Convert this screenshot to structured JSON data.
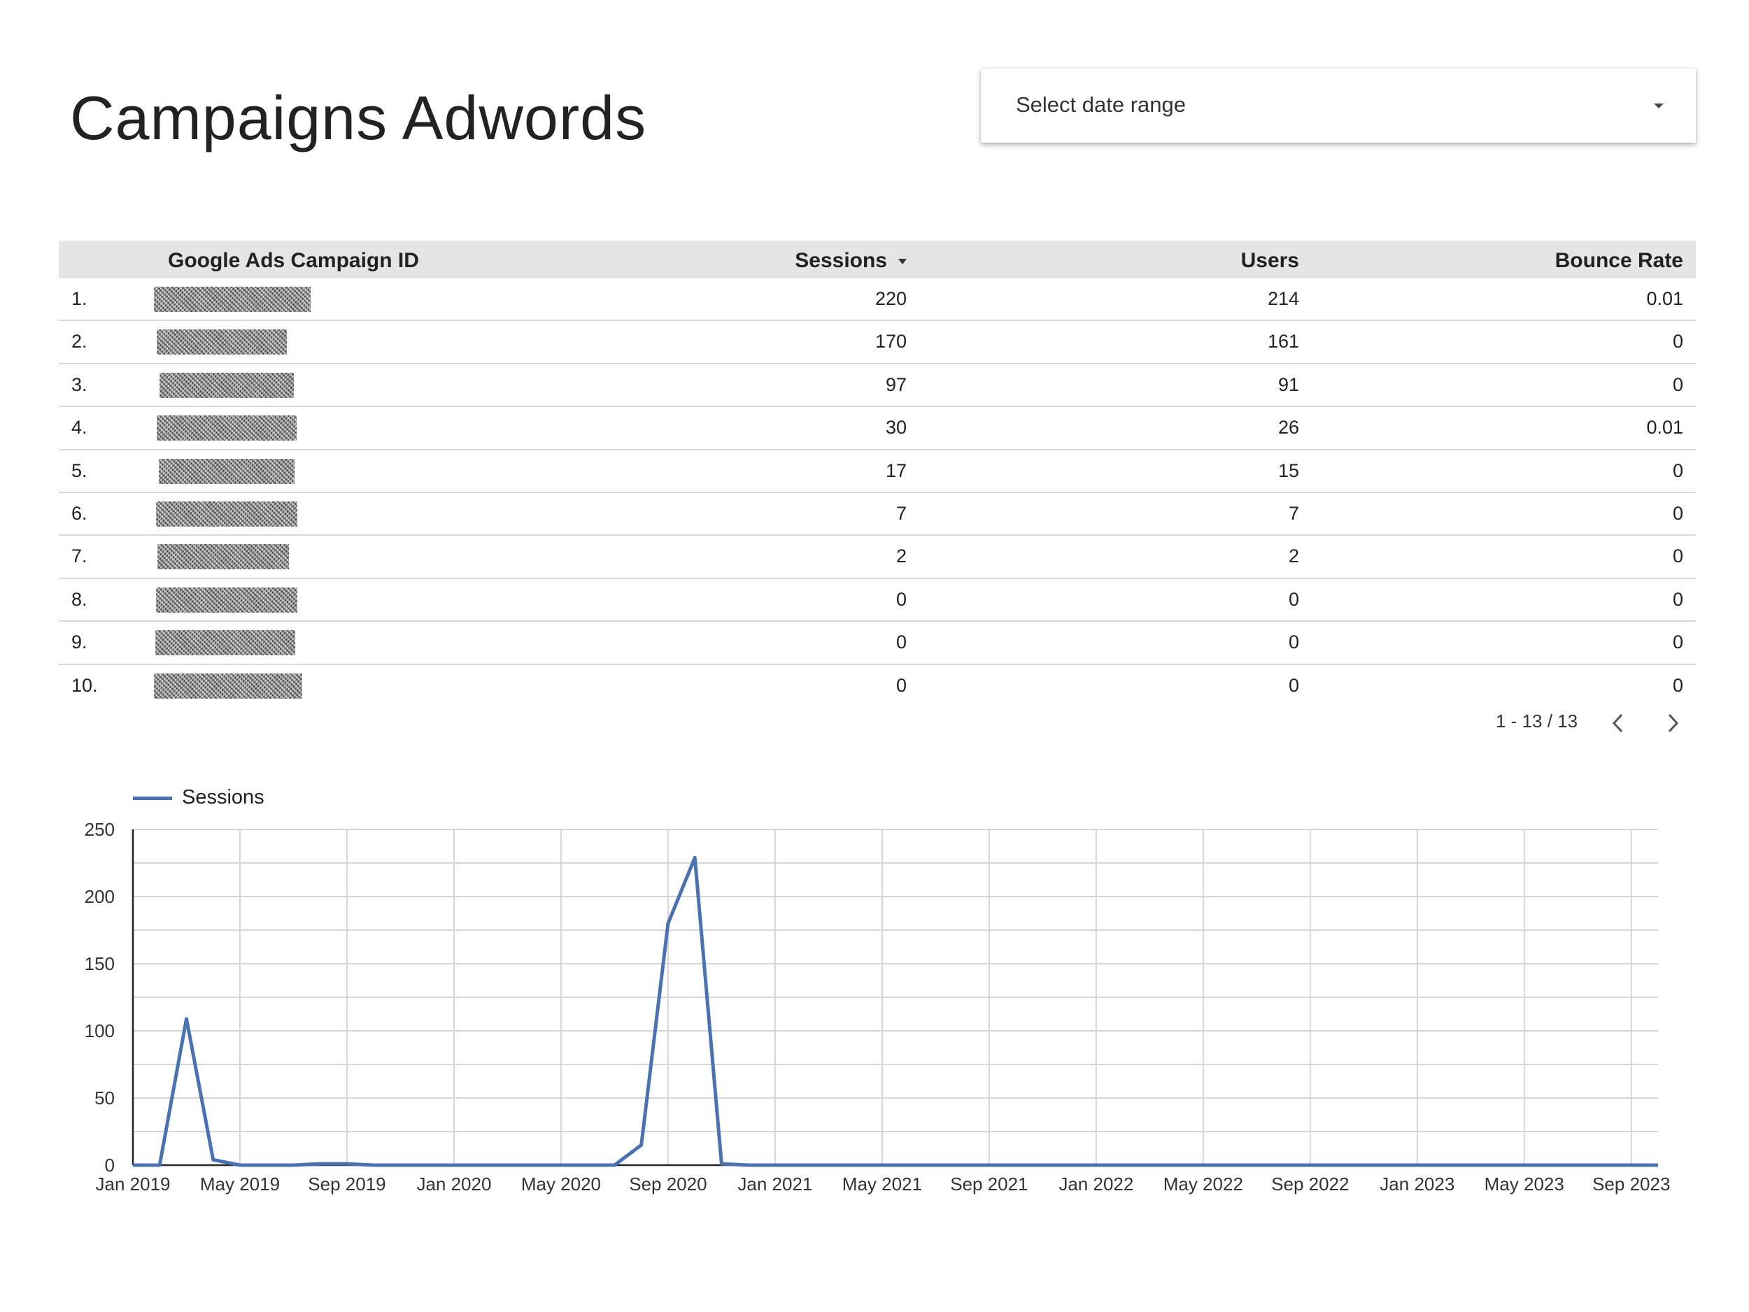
{
  "header": {
    "title": "Campaigns Adwords",
    "date_range_label": "Select date range"
  },
  "table": {
    "columns": [
      "Google Ads Campaign ID",
      "Sessions",
      "Users",
      "Bounce Rate"
    ],
    "sorted_column": "Sessions",
    "rows": [
      {
        "index": "1.",
        "sessions": "220",
        "users": "214",
        "bounce_rate": "0.01"
      },
      {
        "index": "2.",
        "sessions": "170",
        "users": "161",
        "bounce_rate": "0"
      },
      {
        "index": "3.",
        "sessions": "97",
        "users": "91",
        "bounce_rate": "0"
      },
      {
        "index": "4.",
        "sessions": "30",
        "users": "26",
        "bounce_rate": "0.01"
      },
      {
        "index": "5.",
        "sessions": "17",
        "users": "15",
        "bounce_rate": "0"
      },
      {
        "index": "6.",
        "sessions": "7",
        "users": "7",
        "bounce_rate": "0"
      },
      {
        "index": "7.",
        "sessions": "2",
        "users": "2",
        "bounce_rate": "0"
      },
      {
        "index": "8.",
        "sessions": "0",
        "users": "0",
        "bounce_rate": "0"
      },
      {
        "index": "9.",
        "sessions": "0",
        "users": "0",
        "bounce_rate": "0"
      },
      {
        "index": "10.",
        "sessions": "0",
        "users": "0",
        "bounce_rate": "0"
      }
    ],
    "pagination": "1 - 13 / 13"
  },
  "colors": {
    "series": "#4a72b2",
    "grid": "#d6d6d6",
    "header_bg": "#e5e5e5"
  },
  "icons": {
    "prev": "chevron-left-icon",
    "next": "chevron-right-icon",
    "dropdown": "caret-down-icon"
  },
  "chart_data": {
    "type": "line",
    "legend": "top-left",
    "grid": true,
    "x_ticks": [
      "Jan 2019",
      "May 2019",
      "Sep 2019",
      "Jan 2020",
      "May 2020",
      "Sep 2020",
      "Jan 2021",
      "May 2021",
      "Sep 2021",
      "Jan 2022",
      "May 2022",
      "Sep 2022",
      "Jan 2023",
      "May 2023",
      "Sep 2023"
    ],
    "y_ticks": [
      0,
      50,
      100,
      150,
      200,
      250
    ],
    "ylim": [
      0,
      250
    ],
    "xlim": [
      "2019-01",
      "2023-10"
    ],
    "series": [
      {
        "name": "Sessions",
        "points": [
          [
            "2019-01",
            0
          ],
          [
            "2019-02",
            0
          ],
          [
            "2019-03",
            109
          ],
          [
            "2019-04",
            4
          ],
          [
            "2019-05",
            0
          ],
          [
            "2019-06",
            0
          ],
          [
            "2019-07",
            0
          ],
          [
            "2019-08",
            1
          ],
          [
            "2019-09",
            1
          ],
          [
            "2019-10",
            0
          ],
          [
            "2019-11",
            0
          ],
          [
            "2019-12",
            0
          ],
          [
            "2020-01",
            0
          ],
          [
            "2020-02",
            0
          ],
          [
            "2020-03",
            0
          ],
          [
            "2020-04",
            0
          ],
          [
            "2020-05",
            0
          ],
          [
            "2020-06",
            0
          ],
          [
            "2020-07",
            0
          ],
          [
            "2020-08",
            15
          ],
          [
            "2020-09",
            180
          ],
          [
            "2020-10",
            229
          ],
          [
            "2020-11",
            1
          ],
          [
            "2020-12",
            0
          ],
          [
            "2021-01",
            0
          ],
          [
            "2021-06",
            0
          ],
          [
            "2022-01",
            0
          ],
          [
            "2022-06",
            0
          ],
          [
            "2023-01",
            0
          ],
          [
            "2023-06",
            0
          ],
          [
            "2023-10",
            0
          ]
        ]
      }
    ]
  }
}
